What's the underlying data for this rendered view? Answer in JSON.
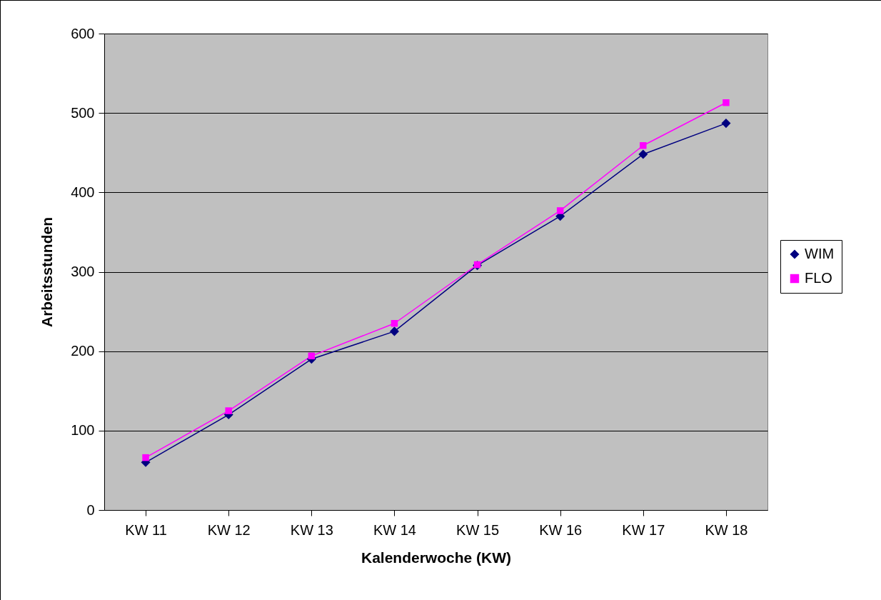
{
  "chart_data": {
    "type": "line",
    "xlabel": "Kalenderwoche (KW)",
    "ylabel": "Arbeitsstunden",
    "categories": [
      "KW 11",
      "KW 12",
      "KW 13",
      "KW 14",
      "KW 15",
      "KW 16",
      "KW 17",
      "KW 18"
    ],
    "series": [
      {
        "name": "WIM",
        "color": "#000080",
        "marker": "diamond",
        "values": [
          60,
          120,
          190,
          225,
          308,
          370,
          448,
          487
        ]
      },
      {
        "name": "FLO",
        "color": "#ff00ff",
        "marker": "square",
        "values": [
          66,
          125,
          194,
          235,
          309,
          377,
          459,
          513
        ]
      }
    ],
    "ylim": [
      0,
      600
    ],
    "yticks": [
      0,
      100,
      200,
      300,
      400,
      500,
      600
    ],
    "grid": "y",
    "legend": "right",
    "line_style": "solid"
  }
}
